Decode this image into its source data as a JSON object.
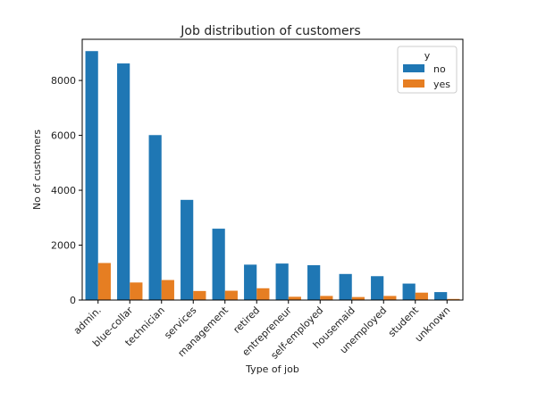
{
  "chart_data": {
    "type": "bar",
    "title": "Job distribution of customers",
    "xlabel": "Type of job",
    "ylabel": "No of customers",
    "categories": [
      "admin.",
      "blue-collar",
      "technician",
      "services",
      "management",
      "retired",
      "entrepreneur",
      "self-employed",
      "housemaid",
      "unemployed",
      "student",
      "unknown"
    ],
    "series": [
      {
        "name": "no",
        "values": [
          9070,
          8620,
          6010,
          3650,
          2600,
          1290,
          1330,
          1270,
          950,
          870,
          600,
          290
        ],
        "color": "#1f77b4"
      },
      {
        "name": "yes",
        "values": [
          1350,
          640,
          730,
          330,
          340,
          430,
          120,
          150,
          110,
          150,
          270,
          40
        ],
        "color": "#e67e22"
      }
    ],
    "ylim": [
      0,
      9500
    ],
    "yticks": [
      0,
      2000,
      4000,
      6000,
      8000
    ],
    "legend": {
      "title": "y",
      "position": "top-right"
    },
    "grid": false
  }
}
